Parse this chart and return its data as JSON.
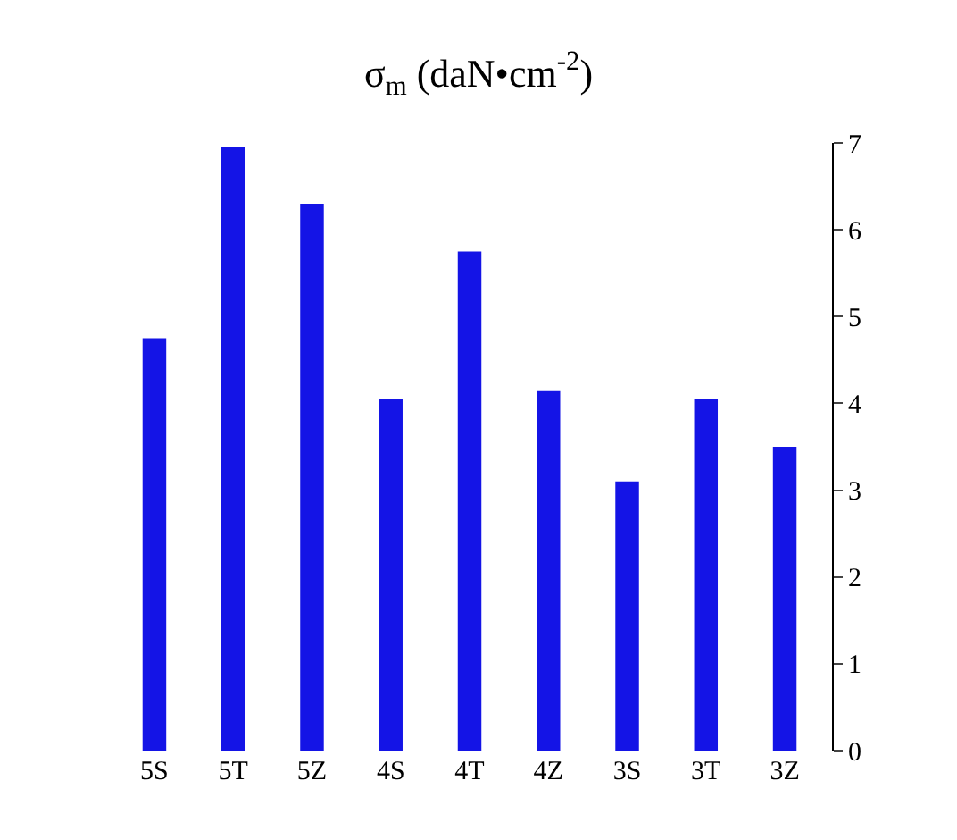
{
  "chart_data": {
    "type": "bar",
    "title": "σ$_{m}$ (daN•cm$^{-2}$)",
    "categories": [
      "5S",
      "5T",
      "5Z",
      "4S",
      "4T",
      "4Z",
      "3S",
      "3T",
      "3Z"
    ],
    "values": [
      4.75,
      6.95,
      6.3,
      4.05,
      5.75,
      4.15,
      3.1,
      4.05,
      3.5
    ],
    "color": "#1414e6",
    "ylim": [
      0,
      7
    ],
    "yticks": [
      0,
      1,
      2,
      3,
      4,
      5,
      6,
      7
    ]
  }
}
